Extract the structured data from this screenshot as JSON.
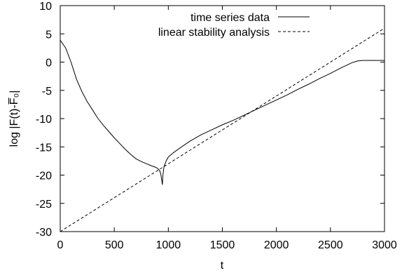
{
  "chart_data": {
    "type": "line",
    "title": "",
    "xlabel": "t",
    "ylabel": "log |F(t)-F̅₀|",
    "xlim": [
      0,
      3000
    ],
    "ylim": [
      -30,
      10
    ],
    "xticks": [
      0,
      500,
      1000,
      1500,
      2000,
      2500,
      3000
    ],
    "yticks": [
      -30,
      -25,
      -20,
      -15,
      -10,
      -5,
      0,
      5,
      10
    ],
    "grid": false,
    "legend_position": "top-center",
    "series": [
      {
        "name": "time series data",
        "style": "solid",
        "color": "#000000",
        "x": [
          0,
          50,
          100,
          150,
          200,
          250,
          300,
          350,
          400,
          450,
          500,
          550,
          600,
          650,
          700,
          750,
          800,
          850,
          880,
          900,
          920,
          930,
          940,
          945,
          950,
          960,
          980,
          1000,
          1050,
          1100,
          1200,
          1300,
          1400,
          1500,
          1600,
          1700,
          1800,
          1900,
          2000,
          2100,
          2200,
          2300,
          2400,
          2500,
          2600,
          2700,
          2750,
          2800,
          2900,
          3000
        ],
        "y": [
          3.9,
          2.5,
          0.0,
          -3.0,
          -5.2,
          -7.0,
          -8.5,
          -10.0,
          -11.2,
          -12.3,
          -13.4,
          -14.4,
          -15.4,
          -16.3,
          -17.1,
          -17.6,
          -18.0,
          -18.4,
          -18.6,
          -18.8,
          -19.2,
          -19.8,
          -21.0,
          -21.7,
          -20.0,
          -18.5,
          -17.5,
          -16.8,
          -16.0,
          -15.3,
          -14.0,
          -12.9,
          -12.0,
          -11.1,
          -10.3,
          -9.4,
          -8.5,
          -7.6,
          -6.7,
          -5.8,
          -4.8,
          -3.9,
          -2.9,
          -2.0,
          -1.0,
          -0.1,
          0.2,
          0.3,
          0.3,
          0.3
        ]
      },
      {
        "name": "linear stability analysis",
        "style": "dashed",
        "color": "#000000",
        "x": [
          0,
          3000
        ],
        "y": [
          -30,
          6
        ]
      }
    ]
  }
}
